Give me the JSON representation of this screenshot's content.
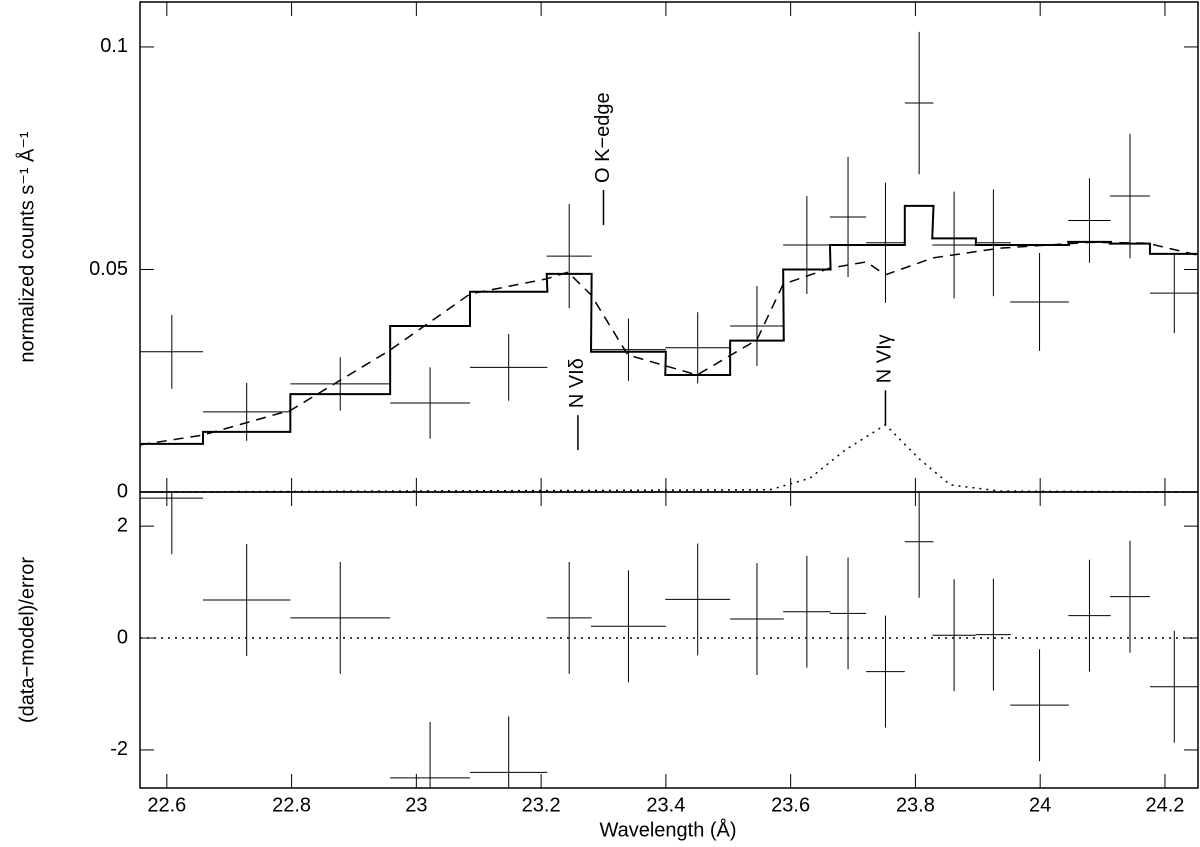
{
  "chart_data": [
    {
      "type": "spectrum",
      "ylabel": "normalized counts s⁻¹ Å⁻¹",
      "xlim": [
        22.557,
        24.253
      ],
      "ylim": [
        0,
        0.1101
      ],
      "yticks": [
        0,
        0.05,
        0.1
      ],
      "x": [
        22.608,
        22.728,
        22.878,
        23.022,
        23.148,
        23.245,
        23.34,
        23.451,
        23.546,
        23.626,
        23.692,
        23.752,
        23.806,
        23.862,
        23.925,
        23.999,
        24.079,
        24.144,
        24.215
      ],
      "xerr": [
        0.05,
        0.07,
        0.08,
        0.064,
        0.062,
        0.036,
        0.06,
        0.052,
        0.043,
        0.038,
        0.029,
        0.031,
        0.023,
        0.035,
        0.028,
        0.047,
        0.034,
        0.032,
        0.039
      ],
      "values": [
        0.0315,
        0.018,
        0.0243,
        0.02,
        0.028,
        0.053,
        0.032,
        0.0324,
        0.0373,
        0.0555,
        0.0618,
        0.056,
        0.0874,
        0.0555,
        0.056,
        0.0427,
        0.061,
        0.0665,
        0.0447
      ],
      "yerr": [
        0.0083,
        0.0065,
        0.006,
        0.008,
        0.0075,
        0.0117,
        0.007,
        0.008,
        0.009,
        0.011,
        0.0135,
        0.0135,
        0.016,
        0.012,
        0.012,
        0.011,
        0.0095,
        0.014,
        0.009
      ],
      "model_values": [
        0.0108,
        0.0135,
        0.022,
        0.0373,
        0.045,
        0.049,
        0.0315,
        0.0263,
        0.034,
        0.05,
        0.0555,
        0.0555,
        0.0643,
        0.057,
        0.0555,
        0.0555,
        0.0562,
        0.0558,
        0.0535
      ],
      "continuum": {
        "x": [
          22.557,
          22.658,
          22.799,
          22.958,
          23.086,
          23.209,
          23.243,
          23.28,
          23.339,
          23.45,
          23.546,
          23.588,
          23.663,
          23.721,
          23.752,
          23.828,
          23.936,
          24.08,
          24.172,
          24.253
        ],
        "values": [
          0.0106,
          0.0128,
          0.0184,
          0.0319,
          0.0445,
          0.0479,
          0.0494,
          0.0443,
          0.0308,
          0.0263,
          0.0342,
          0.0467,
          0.0503,
          0.0517,
          0.0488,
          0.0526,
          0.0548,
          0.0561,
          0.0559,
          0.0532
        ]
      },
      "line_profile": {
        "x": [
          22.557,
          23.567,
          23.631,
          23.687,
          23.752,
          23.808,
          23.856,
          23.936,
          24.253
        ],
        "values": [
          0,
          0.0005,
          0.0031,
          0.0094,
          0.0151,
          0.0072,
          0.0016,
          0.0002,
          0
        ]
      },
      "annotations": [
        {
          "text": "O K−edge",
          "x": 23.3,
          "y": 0.06
        },
        {
          "text": "N VIδ",
          "x": 23.259,
          "y": 0.0094
        },
        {
          "text": "N VIγ",
          "x": 23.752,
          "y": 0.015
        }
      ]
    },
    {
      "type": "residuals",
      "xlabel": "Wavelength (Å)",
      "ylabel": "(data−model)/error",
      "xlim": [
        22.557,
        24.253
      ],
      "xticks": [
        22.6,
        22.8,
        23,
        23.2,
        23.4,
        23.6,
        23.8,
        24,
        24.2
      ],
      "ylim": [
        -2.68,
        2.61
      ],
      "yticks": [
        -2,
        0,
        2
      ],
      "reference": 0,
      "x": [
        22.608,
        22.728,
        22.878,
        23.022,
        23.148,
        23.245,
        23.34,
        23.451,
        23.546,
        23.626,
        23.692,
        23.752,
        23.806,
        23.862,
        23.925,
        23.999,
        24.079,
        24.144,
        24.215
      ],
      "xerr": [
        0.05,
        0.07,
        0.08,
        0.064,
        0.062,
        0.036,
        0.06,
        0.052,
        0.043,
        0.038,
        0.029,
        0.031,
        0.023,
        0.035,
        0.028,
        0.047,
        0.034,
        0.032,
        0.039
      ],
      "values": [
        2.5,
        0.68,
        0.36,
        -2.5,
        -2.4,
        0.36,
        0.21,
        0.69,
        0.34,
        0.47,
        0.44,
        -0.6,
        1.72,
        0.05,
        0.06,
        -1.2,
        0.4,
        0.74,
        -0.87
      ],
      "yerr": [
        1,
        1,
        1,
        1,
        1,
        1,
        1,
        1,
        1,
        1,
        1,
        1,
        1,
        1,
        1,
        1,
        1,
        1,
        1
      ]
    }
  ]
}
